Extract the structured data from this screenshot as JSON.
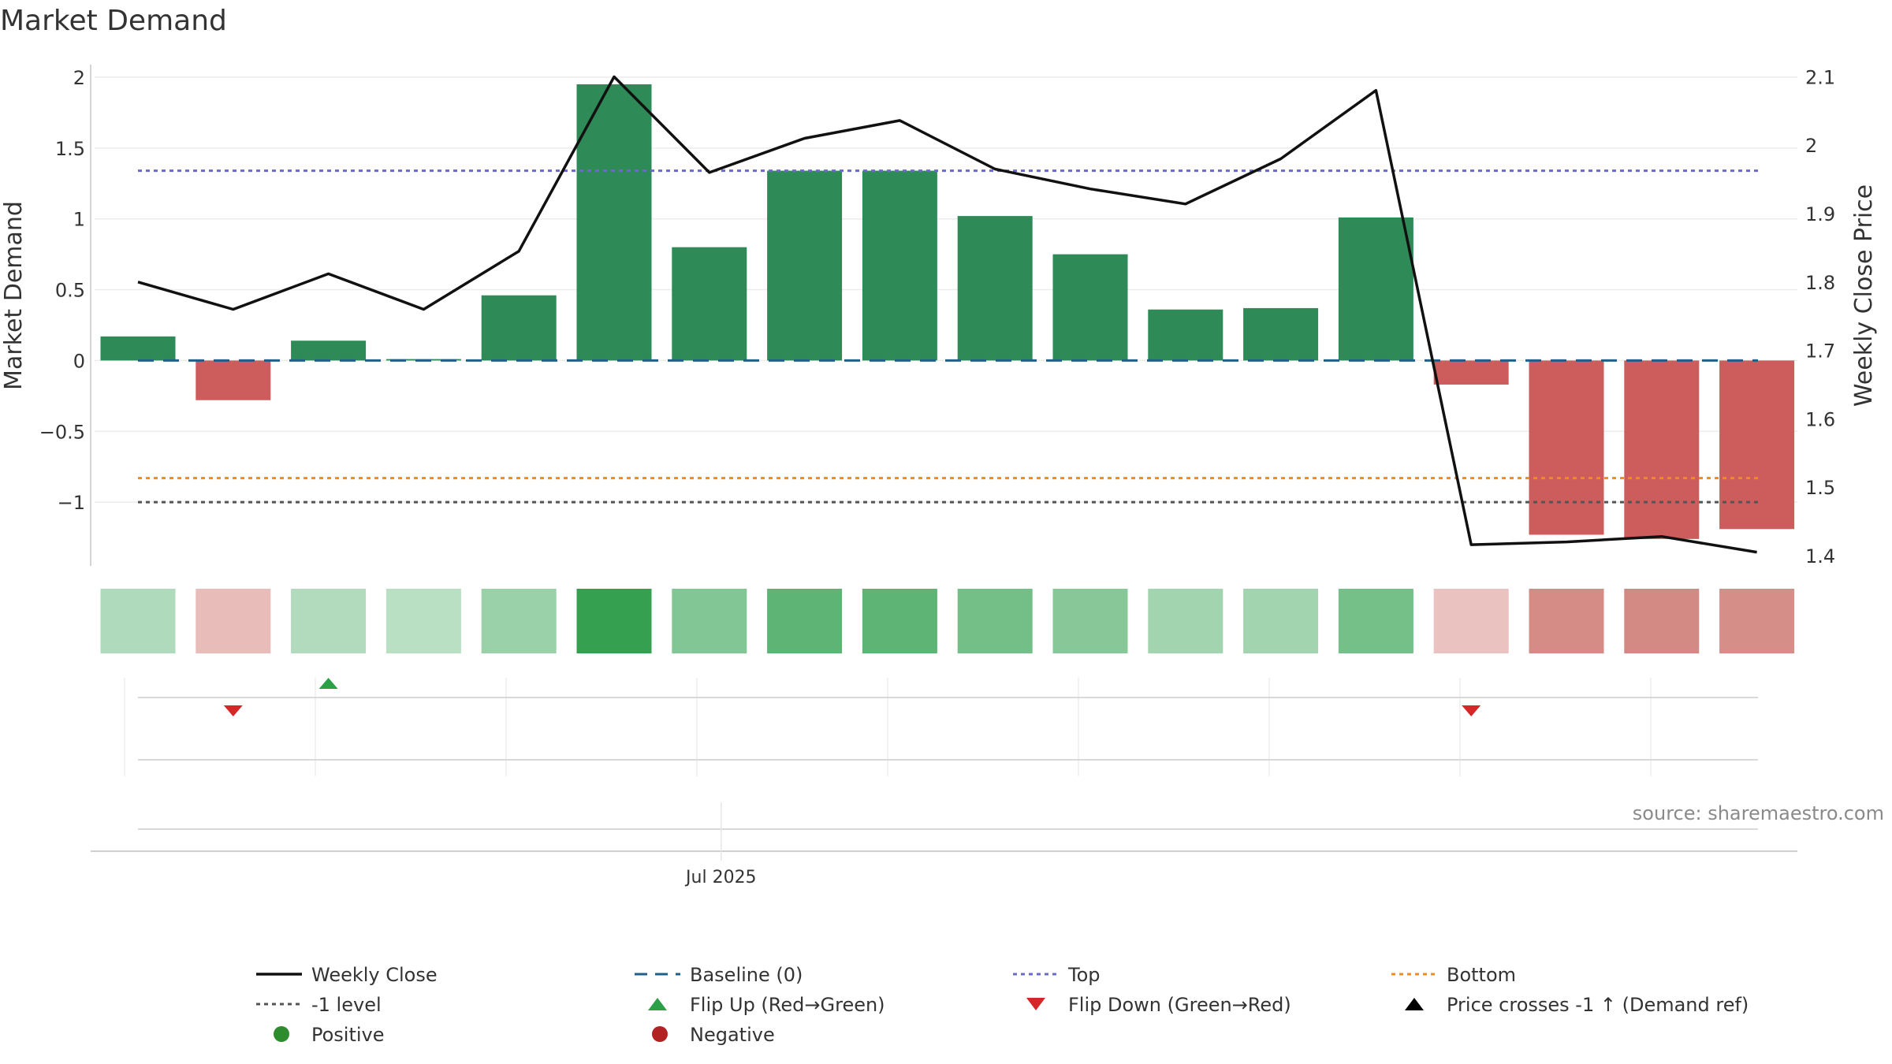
{
  "chart_data": {
    "type": "bar",
    "title": "Market Demand",
    "ylabel_left": "Market Demand",
    "ylabel_right": "Weekly Close Price",
    "source": "source: sharemaestro.com",
    "x_tick_label": "Jul 2025",
    "x_tick_index": 6,
    "ylim_left": [
      -1.45,
      2.1
    ],
    "ylim_right": [
      1.385,
      2.12
    ],
    "left_ticks": [
      {
        "v": 2,
        "t": "2"
      },
      {
        "v": 1.5,
        "t": "1.5"
      },
      {
        "v": 1,
        "t": "1"
      },
      {
        "v": 0.5,
        "t": "0.5"
      },
      {
        "v": 0,
        "t": "0"
      },
      {
        "v": -0.5,
        "t": "−0.5"
      },
      {
        "v": -1,
        "t": "−1"
      }
    ],
    "right_ticks": [
      {
        "v": 2.1,
        "t": "2.1"
      },
      {
        "v": 2.0,
        "t": "2"
      },
      {
        "v": 1.9,
        "t": "1.9"
      },
      {
        "v": 1.8,
        "t": "1.8"
      },
      {
        "v": 1.7,
        "t": "1.7"
      },
      {
        "v": 1.6,
        "t": "1.6"
      },
      {
        "v": 1.5,
        "t": "1.5"
      },
      {
        "v": 1.4,
        "t": "1.4"
      }
    ],
    "demand": [
      0.17,
      -0.28,
      0.14,
      0.01,
      0.46,
      1.95,
      0.8,
      1.34,
      1.34,
      1.02,
      0.75,
      0.36,
      0.37,
      1.01,
      -0.17,
      -1.23,
      -1.26,
      -1.19
    ],
    "weekly_close": [
      1.8,
      1.76,
      1.812,
      1.76,
      1.845,
      2.1,
      1.96,
      2.01,
      2.036,
      1.965,
      1.936,
      1.914,
      1.98,
      2.08,
      1.416,
      1.42,
      1.428,
      1.405
    ],
    "top_level": 1.34,
    "bottom_level": -0.83,
    "minus_one_level": -1,
    "baseline": 0,
    "flip_up_index": [
      2
    ],
    "flip_down_index": [
      1,
      14
    ],
    "colors": {
      "positive": "#2e8b57",
      "negative": "#cd5c5c",
      "close": "#111111",
      "baseline": "#1f5f8b",
      "top": "#6a6acd",
      "bottom": "#f08a24",
      "minus_one": "#555555",
      "flip_up": "#2ca048",
      "flip_down": "#d62728"
    },
    "legend": [
      {
        "label": "Weekly Close",
        "kind": "line-solid",
        "color": "#111111"
      },
      {
        "label": "Baseline (0)",
        "kind": "line-dash",
        "color": "#1f5f8b"
      },
      {
        "label": "Top",
        "kind": "line-dot",
        "color": "#6a6acd"
      },
      {
        "label": "Bottom",
        "kind": "line-dot",
        "color": "#f08a24"
      },
      {
        "label": "-1 level",
        "kind": "line-dot",
        "color": "#555555"
      },
      {
        "label": "Flip Up (Red→Green)",
        "kind": "tri-up",
        "color": "#2ca048"
      },
      {
        "label": "Flip Down (Green→Red)",
        "kind": "tri-down",
        "color": "#d62728"
      },
      {
        "label": "Price crosses -1 ↑ (Demand ref)",
        "kind": "tri-up",
        "color": "#000000"
      },
      {
        "label": "Positive",
        "kind": "circle",
        "color": "#2e8b2e"
      },
      {
        "label": "Negative",
        "kind": "circle",
        "color": "#b22222"
      }
    ]
  }
}
